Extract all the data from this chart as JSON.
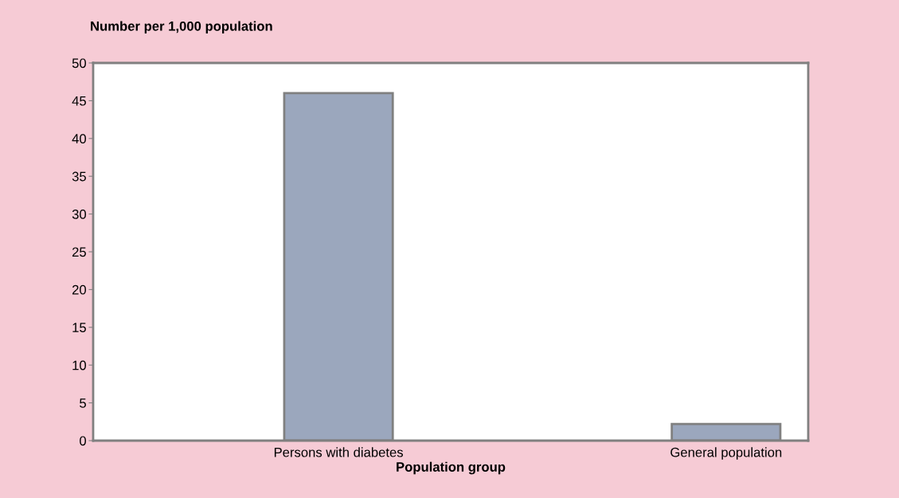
{
  "chart_data": {
    "type": "bar",
    "xlabel": "Population group",
    "ylabel": "Number per 1,000 population",
    "categories": [
      "Persons with diabetes",
      "General population"
    ],
    "values": [
      46.0,
      2.2
    ],
    "color": "#9ba7bd",
    "ylim": [
      0,
      50
    ],
    "yticks": [
      0,
      5,
      10,
      15,
      20,
      25,
      30,
      35,
      40,
      45,
      50
    ],
    "grid": false
  }
}
